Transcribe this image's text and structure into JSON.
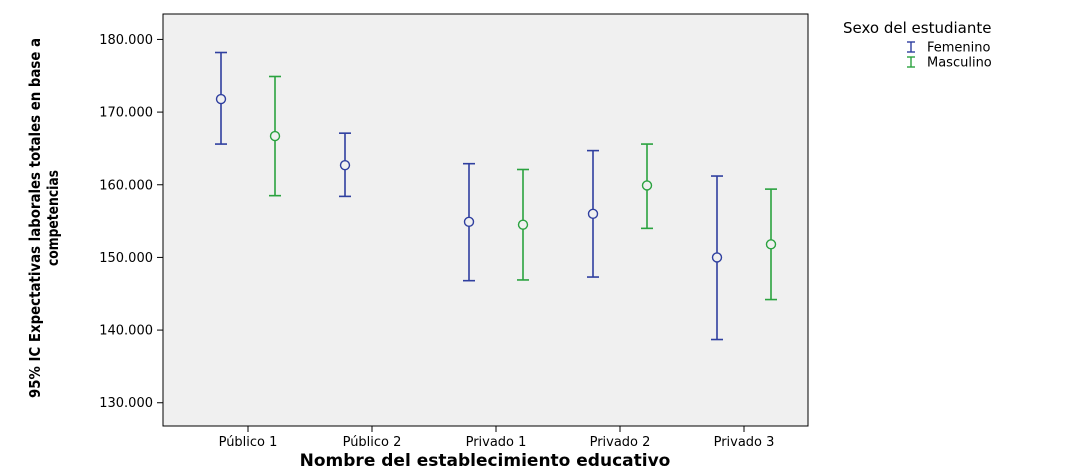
{
  "chart_data": {
    "type": "errorbar",
    "title": "",
    "xlabel": "Nombre del establecimiento educativo",
    "ylabel_lines": [
      "95% IC Expectativas laborales totales en base a",
      "competencias"
    ],
    "categories": [
      "Público 1",
      "Público 2",
      "Privado 1",
      "Privado 2",
      "Privado 3"
    ],
    "yticks": [
      130,
      140,
      150,
      160,
      170,
      180
    ],
    "ytick_labels": [
      "130.000",
      "140.000",
      "150.000",
      "160.000",
      "170.000",
      "180.000"
    ],
    "ylim": [
      126.8,
      183.5
    ],
    "grid": false,
    "legend": {
      "title": "Sexo del estudiante",
      "position": "right",
      "labels": [
        "Femenino",
        "Masculino"
      ]
    },
    "series": [
      {
        "name": "Femenino",
        "color": "#2f3f9f",
        "points": [
          {
            "category": "Público 1",
            "mean": 171.8,
            "lower": 165.6,
            "upper": 178.2
          },
          {
            "category": "Público 2",
            "mean": 162.7,
            "lower": 158.4,
            "upper": 167.1
          },
          {
            "category": "Privado 1",
            "mean": 154.9,
            "lower": 146.8,
            "upper": 162.9
          },
          {
            "category": "Privado 2",
            "mean": 156.0,
            "lower": 147.3,
            "upper": 164.7
          },
          {
            "category": "Privado 3",
            "mean": 150.0,
            "lower": 138.7,
            "upper": 161.2
          }
        ]
      },
      {
        "name": "Masculino",
        "color": "#2aa23f",
        "points": [
          {
            "category": "Público 1",
            "mean": 166.7,
            "lower": 158.5,
            "upper": 174.9
          },
          {
            "category": "Privado 1",
            "mean": 154.5,
            "lower": 146.9,
            "upper": 162.1
          },
          {
            "category": "Privado 2",
            "mean": 159.9,
            "lower": 154.0,
            "upper": 165.6
          },
          {
            "category": "Privado 3",
            "mean": 151.8,
            "lower": 144.2,
            "upper": 159.4
          }
        ]
      }
    ]
  }
}
